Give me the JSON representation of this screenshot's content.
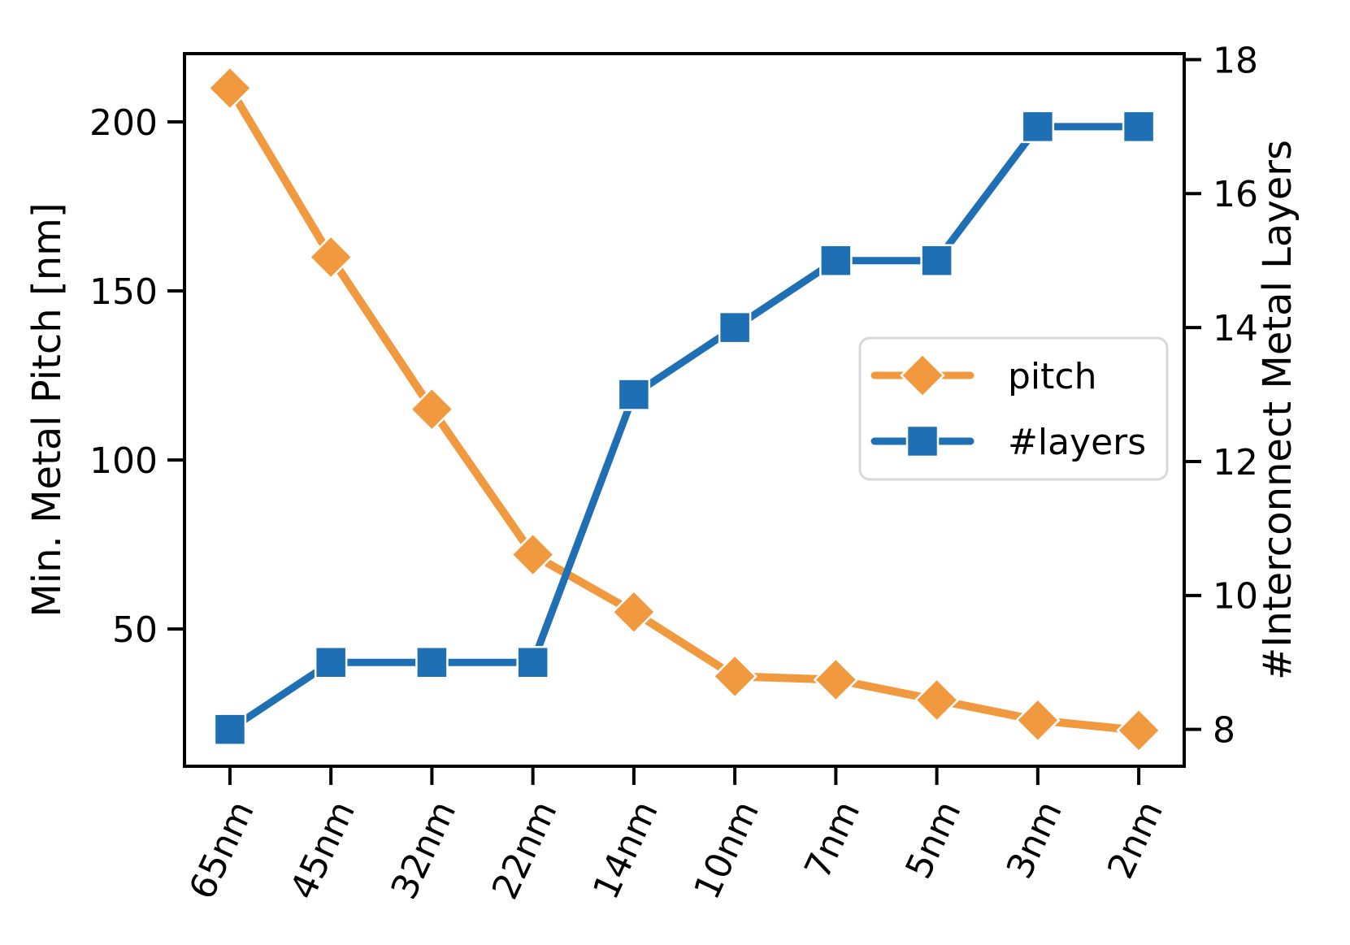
{
  "chart_data": {
    "type": "line",
    "categories": [
      "65nm",
      "45nm",
      "32nm",
      "22nm",
      "14nm",
      "10nm",
      "7nm",
      "5nm",
      "3nm",
      "2nm"
    ],
    "series": [
      {
        "name": "pitch",
        "axis": "left",
        "marker": "diamond",
        "color": "#f0993f",
        "line_width": 10,
        "values": [
          210,
          160,
          115,
          72,
          55,
          36,
          35,
          29,
          23,
          20
        ]
      },
      {
        "name": "#layers",
        "axis": "right",
        "marker": "square",
        "color": "#1f6fb4",
        "line_width": 9,
        "values": [
          8,
          9,
          9,
          9,
          13,
          14,
          15,
          15,
          17,
          17
        ]
      }
    ],
    "left_axis": {
      "label": "Min. Metal Pitch [nm]",
      "ticks": [
        50,
        100,
        150,
        200
      ],
      "range": [
        9.4,
        220.2
      ]
    },
    "right_axis": {
      "label": "#Interconnect Metal Layers",
      "ticks": [
        8,
        10,
        12,
        14,
        16,
        18
      ],
      "range": [
        7.45,
        18.09
      ]
    },
    "x_axis": {
      "tick_rotation_deg": 65
    },
    "legend": {
      "position": "right-center",
      "entries": [
        {
          "label": "pitch",
          "color": "#f0993f",
          "marker": "diamond"
        },
        {
          "label": "#layers",
          "color": "#1f6fb4",
          "marker": "square"
        }
      ]
    },
    "grid": false,
    "background": "#ffffff",
    "frame_color": "#000000"
  }
}
